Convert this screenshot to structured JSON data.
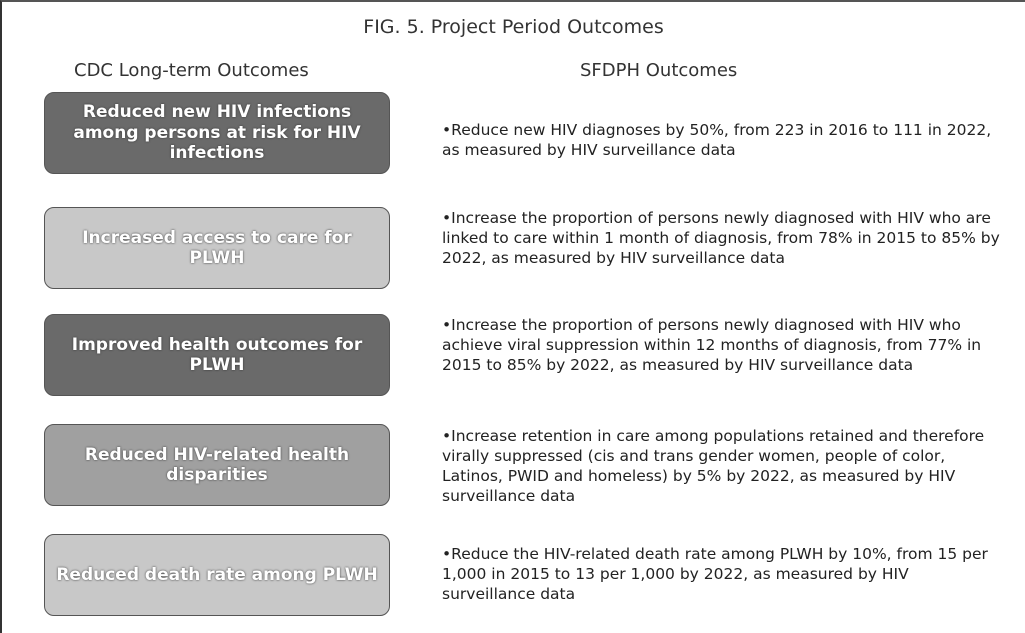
{
  "title": "FIG. 5. Project Period Outcomes",
  "columns": {
    "left": "CDC Long-term Outcomes",
    "right": "SFDPH Outcomes"
  },
  "rows": [
    {
      "outcome": "Reduced new HIV infections among persons at risk for HIV infections",
      "detail": "Reduce new HIV diagnoses by 50%, from 223 in 2016 to 111 in 2022, as measured by HIV surveillance data"
    },
    {
      "outcome": "Increased access to care for PLWH",
      "detail": "Increase the proportion of persons newly diagnosed with HIV who are linked to care within 1 month of diagnosis, from 78% in 2015 to 85% by 2022, as measured by HIV surveillance data"
    },
    {
      "outcome": "Improved health outcomes for PLWH",
      "detail": "Increase the proportion of persons newly diagnosed with HIV who achieve viral suppression within 12 months of diagnosis, from 77% in 2015 to 85% by 2022, as measured by HIV surveillance data"
    },
    {
      "outcome": "Reduced HIV-related health disparities",
      "detail": "Increase retention in care among populations retained and therefore virally suppressed (cis and trans gender women, people of color, Latinos, PWID and homeless) by 5% by 2022, as measured by HIV surveillance data"
    },
    {
      "outcome": "Reduced death rate among PLWH",
      "detail": "Reduce the HIV-related death rate among PLWH by 10%, from 15 per 1,000 in 2015 to 13 per 1,000 by 2022, as measured by HIV surveillance data"
    }
  ]
}
